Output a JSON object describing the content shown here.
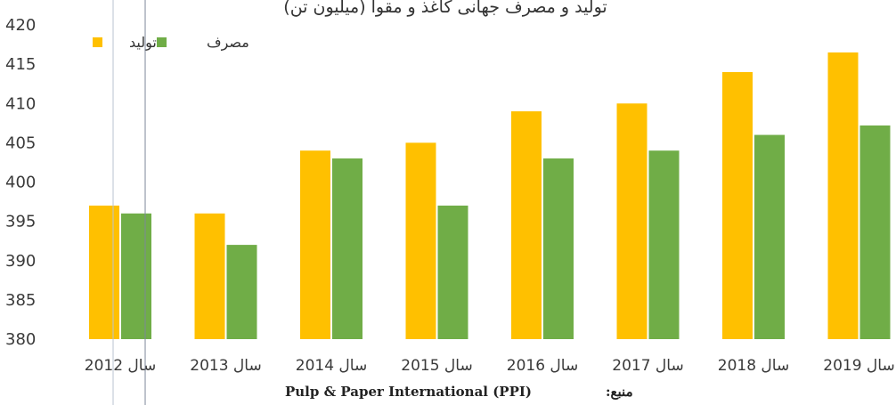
{
  "chart_data": {
    "type": "bar",
    "title": "تولید و مصرف جهانی کاغذ و مقوا (میلیون تن)",
    "categories": [
      "سال 2012",
      "سال 2013",
      "سال 2014",
      "سال 2015",
      "سال 2016",
      "سال 2017",
      "سال 2018",
      "سال 2019"
    ],
    "series": [
      {
        "name": "تولید",
        "color": "#FFC000",
        "values": [
          397,
          396,
          404,
          405,
          409,
          410,
          414,
          416.5
        ]
      },
      {
        "name": "مصرف",
        "color": "#70AD47",
        "values": [
          396,
          392,
          403,
          397,
          403,
          404,
          406,
          407.2
        ]
      }
    ],
    "ylim": [
      380,
      420
    ],
    "yticks": [
      380,
      385,
      390,
      395,
      400,
      405,
      410,
      415,
      420
    ],
    "legend_position": "top-left",
    "grid": false,
    "source_label": "منبع:",
    "source_text": "Pulp & Paper International (PPI)"
  }
}
